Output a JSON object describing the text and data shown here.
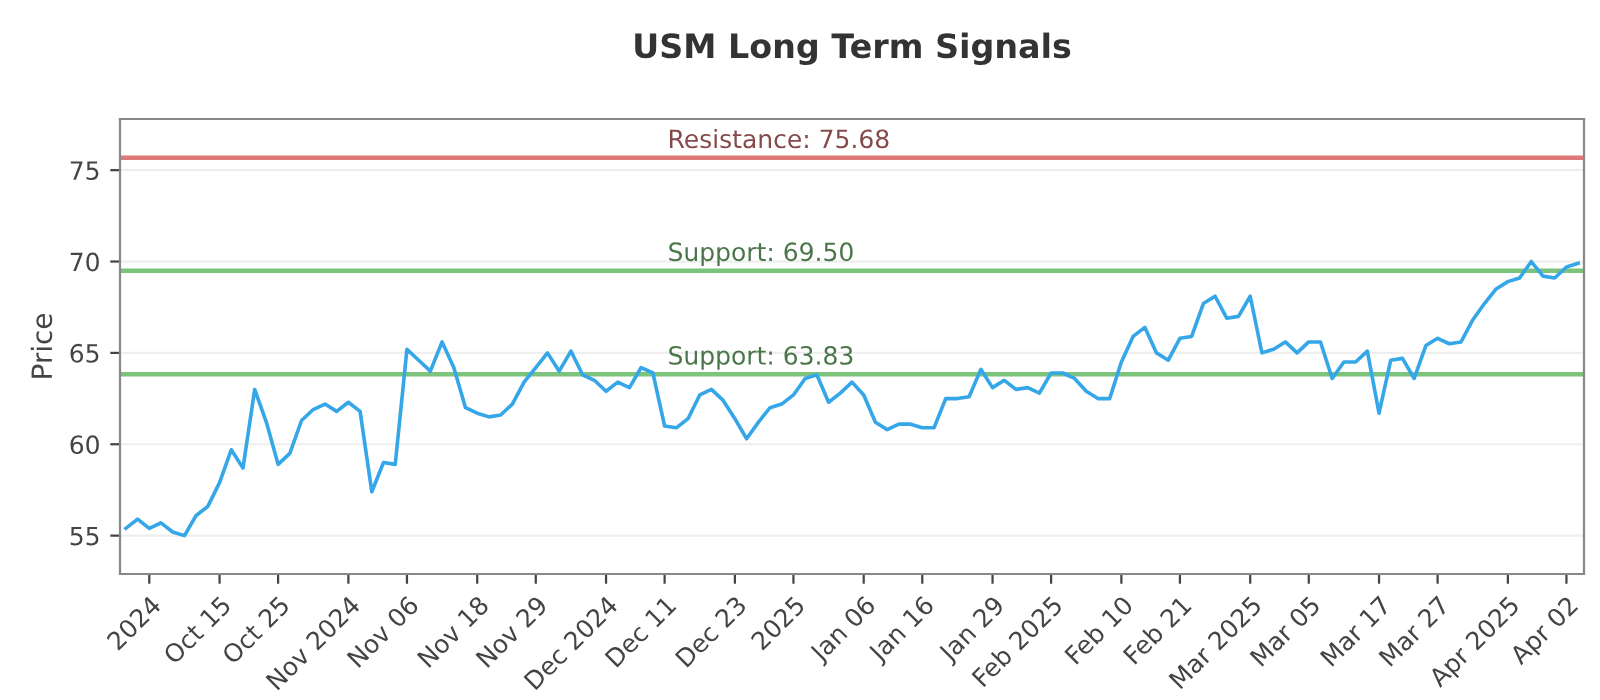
{
  "chart_data": {
    "type": "line",
    "title": "USM Long Term Signals",
    "ylabel": "Price",
    "categories": [
      null,
      null,
      "2024",
      null,
      null,
      null,
      null,
      null,
      "Oct 15",
      null,
      null,
      null,
      null,
      "Oct 25",
      null,
      null,
      null,
      null,
      null,
      "Nov 2024",
      null,
      null,
      null,
      null,
      "Nov 06",
      null,
      null,
      null,
      null,
      null,
      "Nov 18",
      null,
      null,
      null,
      null,
      "Nov 29",
      null,
      null,
      null,
      null,
      null,
      "Dec 2024",
      null,
      null,
      null,
      null,
      "Dec 11",
      null,
      null,
      null,
      null,
      null,
      "Dec 23",
      null,
      null,
      null,
      null,
      "2025",
      null,
      null,
      null,
      null,
      null,
      "Jan 06",
      null,
      null,
      null,
      null,
      "Jan 16",
      null,
      null,
      null,
      null,
      null,
      "Jan 29",
      null,
      null,
      null,
      null,
      "Feb 2025",
      null,
      null,
      null,
      null,
      null,
      "Feb 10",
      null,
      null,
      null,
      null,
      "Feb 21",
      null,
      null,
      null,
      null,
      null,
      "Mar 2025",
      null,
      null,
      null,
      null,
      "Mar 05",
      null,
      null,
      null,
      null,
      null,
      "Mar 17",
      null,
      null,
      null,
      null,
      "Mar 27",
      null,
      null,
      null,
      null,
      null,
      "Apr 2025",
      null,
      null,
      null,
      null,
      "Apr 02",
      null
    ],
    "series": [
      {
        "color": "#35a7e8",
        "values": [
          55.4,
          55.9,
          55.4,
          55.7,
          55.2,
          55.0,
          56.1,
          56.6,
          57.9,
          59.7,
          58.7,
          63.0,
          61.2,
          58.9,
          59.5,
          61.3,
          61.9,
          62.2,
          61.8,
          62.3,
          61.8,
          57.4,
          59.0,
          58.9,
          65.2,
          64.6,
          64.0,
          65.6,
          64.2,
          62.0,
          61.7,
          61.5,
          61.6,
          62.2,
          63.4,
          64.2,
          65.0,
          64.0,
          65.1,
          63.8,
          63.5,
          62.9,
          63.4,
          63.1,
          64.2,
          63.9,
          61.0,
          60.9,
          61.4,
          62.7,
          63.0,
          62.4,
          61.4,
          60.3,
          61.2,
          62.0,
          62.2,
          62.7,
          63.6,
          63.8,
          62.3,
          62.8,
          63.4,
          62.7,
          61.2,
          60.8,
          61.1,
          61.1,
          60.9,
          60.9,
          62.5,
          62.5,
          62.6,
          64.1,
          63.1,
          63.5,
          63.0,
          63.1,
          62.8,
          63.9,
          63.9,
          63.6,
          62.9,
          62.5,
          62.5,
          64.5,
          65.9,
          66.4,
          65.0,
          64.6,
          65.8,
          65.9,
          67.7,
          68.1,
          66.9,
          67.0,
          68.1,
          65.0,
          65.2,
          65.6,
          65.0,
          65.6,
          65.6,
          63.6,
          64.5,
          64.5,
          65.1,
          61.7,
          64.6,
          64.7,
          63.6,
          65.4,
          65.8,
          65.5,
          65.6,
          66.8,
          67.7,
          68.5,
          68.9,
          69.1,
          70.0,
          69.2,
          69.1,
          69.7,
          69.9
        ]
      }
    ],
    "ylim": [
      52.9,
      77.8
    ],
    "yticks": [
      55,
      60,
      65,
      70,
      75
    ],
    "grid": "y",
    "marker": "none",
    "line_style": "solid",
    "ref_lines": [
      {
        "axis": "y",
        "value": 75.68,
        "label": "Resistance: 75.68",
        "color": "#e07a7a"
      },
      {
        "axis": "y",
        "value": 69.5,
        "label": "Support: 69.50",
        "color": "#7cc47c"
      },
      {
        "axis": "y",
        "value": 63.83,
        "label": "Support: 63.83",
        "color": "#7cc47c"
      }
    ]
  }
}
